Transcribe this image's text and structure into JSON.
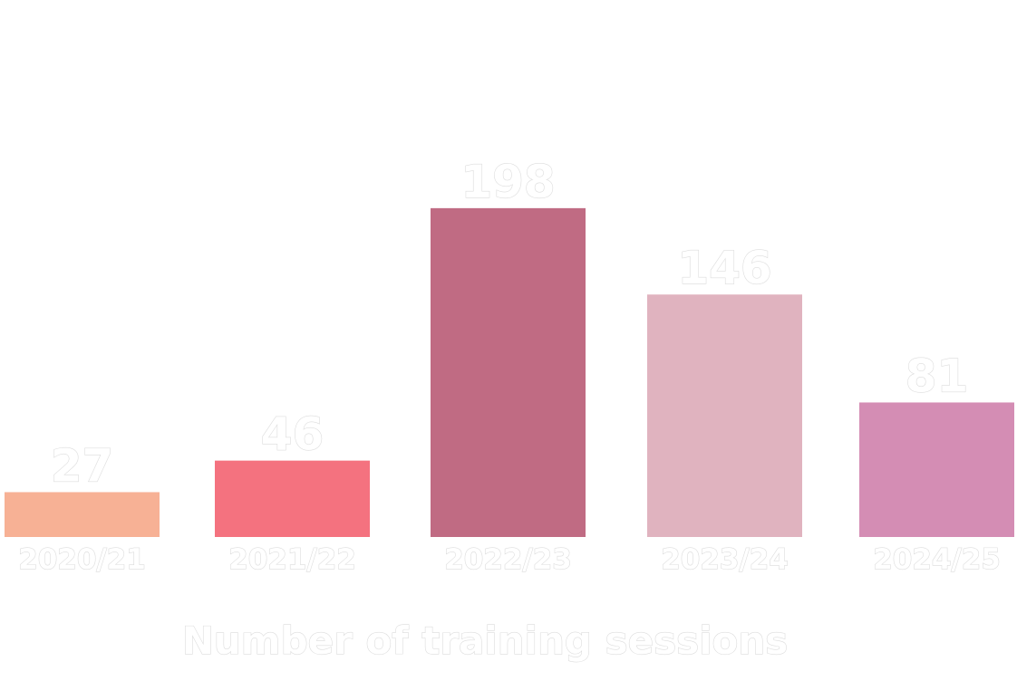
{
  "chart_data": {
    "type": "bar",
    "categories": [
      "2020/21",
      "2021/22",
      "2022/23",
      "2023/24",
      "2024/25"
    ],
    "values": [
      27,
      46,
      198,
      146,
      81
    ],
    "value_labels": [
      "27",
      "46",
      "198",
      "146",
      "81"
    ],
    "xlabel": "Number of training sessions",
    "ylabel": "",
    "ylim": [
      0,
      250
    ],
    "grid": false,
    "legend": "none",
    "colors": [
      "#f7b195",
      "#f4727f",
      "#c06b83",
      "#e0b3bf",
      "#d48db4"
    ]
  }
}
